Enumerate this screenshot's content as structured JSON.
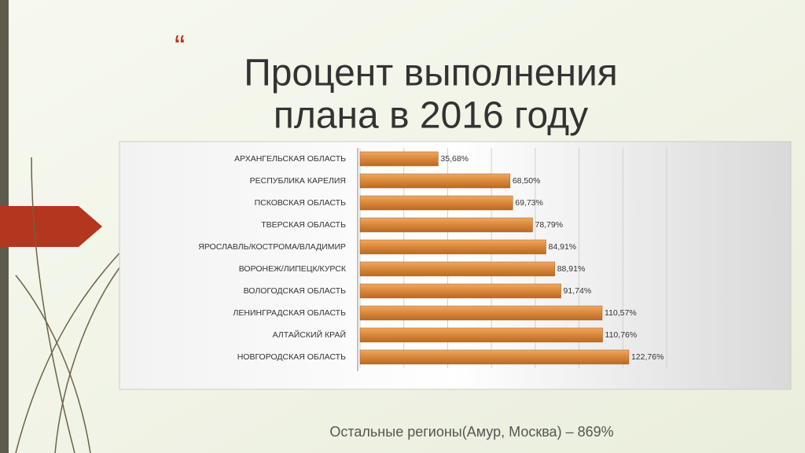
{
  "quote_mark": "“",
  "chart_data": {
    "type": "bar",
    "orientation": "horizontal",
    "title": [
      "Процент выполнения",
      "плана в 2016 году"
    ],
    "categories": [
      "АРХАНГЕЛЬСКАЯ ОБЛАСТЬ",
      "РЕСПУБЛИКА КАРЕЛИЯ",
      "ПСКОВСКАЯ ОБЛАСТЬ",
      "ТВЕРСКАЯ ОБЛАСТЬ",
      "ЯРОСЛАВЛЬ/КОСТРОМА/ВЛАДИМИР",
      "ВОРОНЕЖ/ЛИПЕЦК/КУРСК",
      "ВОЛОГОДСКАЯ ОБЛАСТЬ",
      "ЛЕНИНГРАДСКАЯ ОБЛАСТЬ",
      "АЛТАЙСКИЙ КРАЙ",
      "НОВГОРОДСКАЯ ОБЛАСТЬ"
    ],
    "values": [
      35.68,
      68.5,
      69.73,
      78.79,
      84.91,
      88.91,
      91.74,
      110.57,
      110.76,
      122.76
    ],
    "value_labels": [
      "35,68%",
      "68,50%",
      "69,73%",
      "78,79%",
      "84,91%",
      "88,91%",
      "91,74%",
      "110,57%",
      "110,76%",
      "122,76%"
    ],
    "color": "#d9873a",
    "xlim": [
      0,
      140
    ],
    "xticks": [
      0,
      20,
      40,
      60,
      80,
      100,
      120,
      140
    ],
    "grid": true
  },
  "footer": "Остальные регионы(Амур, Москва) – 869%"
}
